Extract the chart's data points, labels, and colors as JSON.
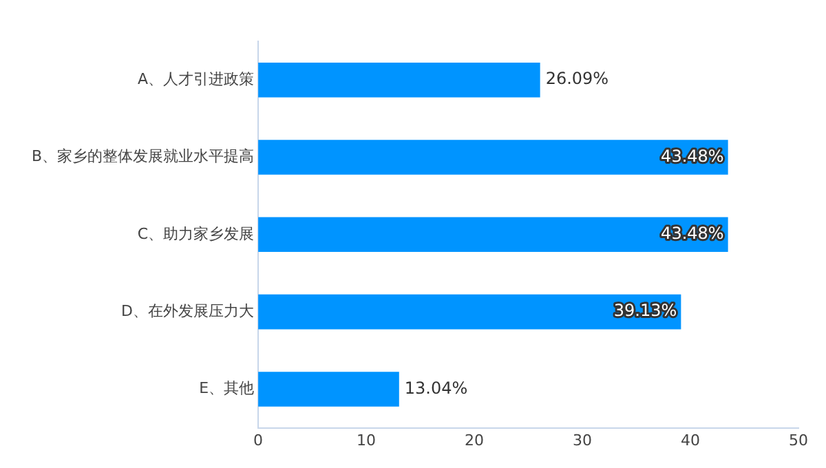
{
  "chart_data": {
    "type": "bar",
    "orientation": "horizontal",
    "categories": [
      "A、人才引进政策",
      "B、家乡的整体发展就业水平提高",
      "C、助力家乡发展",
      "D、在外发展压力大",
      "E、其他"
    ],
    "values": [
      26.09,
      43.48,
      43.48,
      39.13,
      13.04
    ],
    "value_labels": [
      "26.09%",
      "43.48%",
      "43.48%",
      "39.13%",
      "13.04%"
    ],
    "color": "#0094ff",
    "xlim": [
      0,
      50
    ],
    "xticks": [
      0,
      10,
      20,
      30,
      40,
      50
    ],
    "grid": false,
    "legend": false
  }
}
